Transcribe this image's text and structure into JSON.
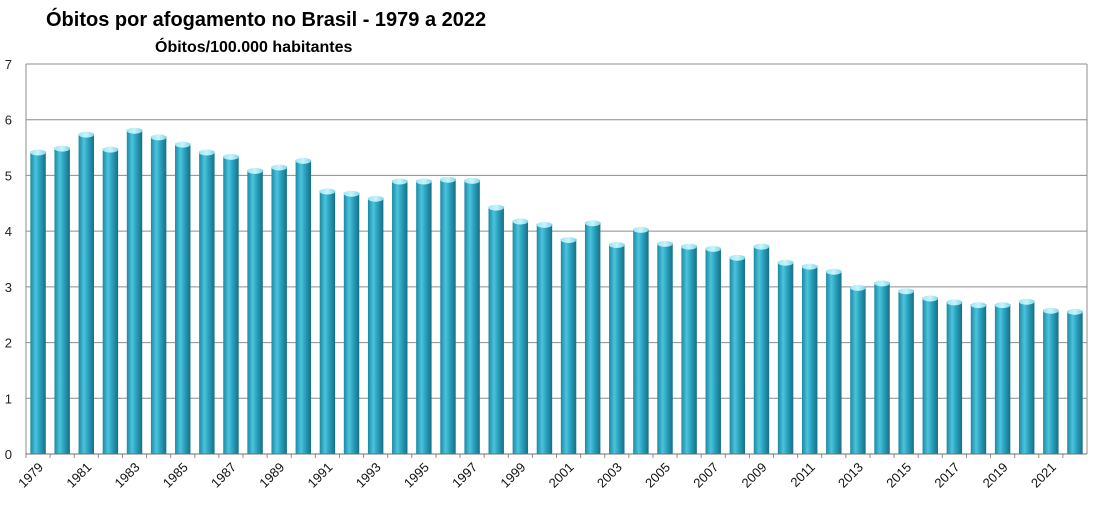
{
  "chart_data": {
    "type": "bar",
    "title": "Óbitos por afogamento no Brasil - 1979 a 2022",
    "subtitle": "Óbitos/100.000 habitantes",
    "xlabel": "",
    "ylabel": "",
    "ylim": [
      0,
      7
    ],
    "yticks": [
      0,
      1,
      2,
      3,
      4,
      5,
      6,
      7
    ],
    "grid": true,
    "categories": [
      "1979",
      "1980",
      "1981",
      "1982",
      "1983",
      "1984",
      "1985",
      "1986",
      "1987",
      "1988",
      "1989",
      "1990",
      "1991",
      "1992",
      "1993",
      "1994",
      "1995",
      "1996",
      "1997",
      "1998",
      "1999",
      "2000",
      "2001",
      "2002",
      "2003",
      "2004",
      "2005",
      "2006",
      "2007",
      "2008",
      "2009",
      "2010",
      "2011",
      "2012",
      "2013",
      "2014",
      "2015",
      "2016",
      "2017",
      "2018",
      "2019",
      "2020",
      "2021",
      "2022"
    ],
    "tick_labels_shown": [
      "1979",
      "1981",
      "1983",
      "1985",
      "1987",
      "1989",
      "1991",
      "1993",
      "1995",
      "1997",
      "1999",
      "2001",
      "2003",
      "2005",
      "2007",
      "2009",
      "2011",
      "2013",
      "2015",
      "2017",
      "2019",
      "2021"
    ],
    "values": [
      5.43,
      5.5,
      5.75,
      5.48,
      5.82,
      5.7,
      5.57,
      5.43,
      5.35,
      5.1,
      5.16,
      5.28,
      4.73,
      4.69,
      4.6,
      4.91,
      4.91,
      4.94,
      4.92,
      4.44,
      4.19,
      4.13,
      3.86,
      4.16,
      3.77,
      4.04,
      3.79,
      3.74,
      3.7,
      3.54,
      3.74,
      3.45,
      3.38,
      3.29,
      3.0,
      3.08,
      2.94,
      2.81,
      2.74,
      2.69,
      2.69,
      2.75,
      2.59,
      2.57
    ],
    "colors": {
      "bar": "#2aa3c0",
      "bar_light": "#7fdcef",
      "bar_dark": "#1a7c93",
      "grid": "#8c8c8c"
    }
  }
}
